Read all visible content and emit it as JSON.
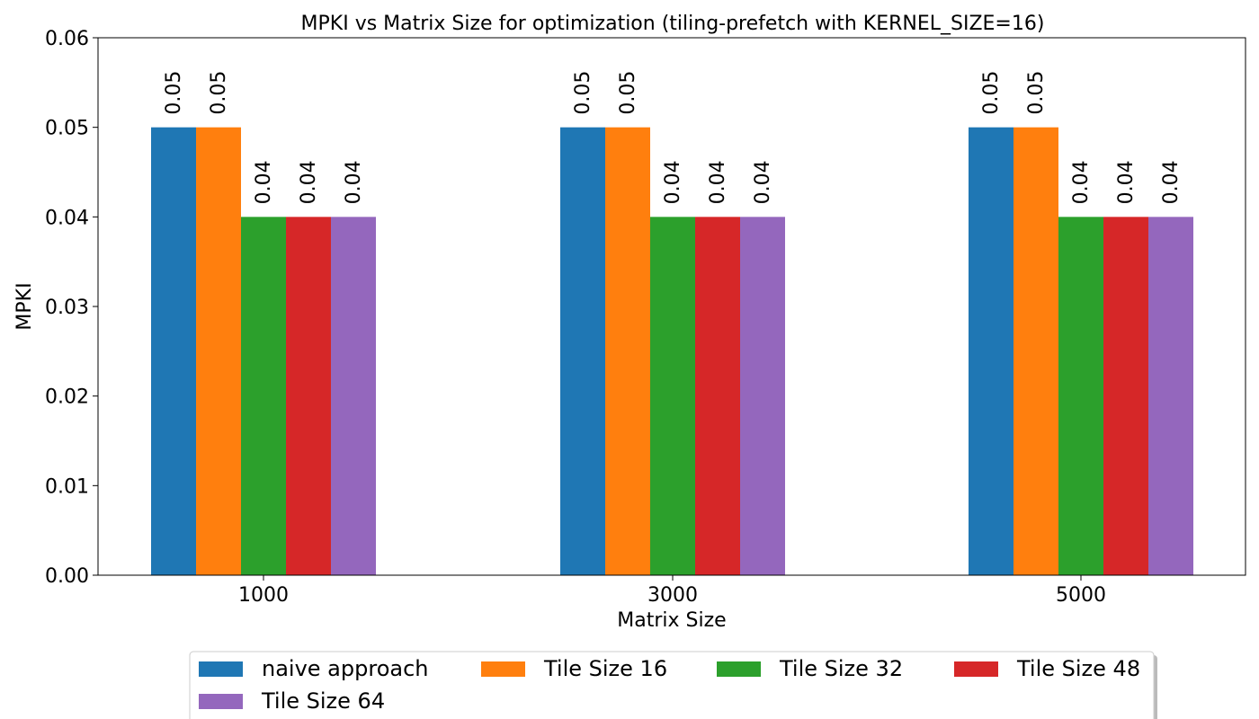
{
  "chart_data": {
    "type": "bar",
    "title": "MPKI vs Matrix Size for optimization (tiling-prefetch with KERNEL_SIZE=16)",
    "xlabel": "Matrix Size",
    "ylabel": "MPKI",
    "categories": [
      "1000",
      "3000",
      "5000"
    ],
    "ylim": [
      0,
      0.06
    ],
    "yticks": [
      "0.00",
      "0.01",
      "0.02",
      "0.03",
      "0.04",
      "0.05",
      "0.06"
    ],
    "grid": false,
    "legend_position": "bottom-center",
    "series": [
      {
        "name": "naive approach",
        "color": "#1f77b4",
        "values": [
          0.05,
          0.05,
          0.05
        ],
        "labels": [
          "0.05",
          "0.05",
          "0.05"
        ]
      },
      {
        "name": "Tile Size 16",
        "color": "#ff7f0e",
        "values": [
          0.05,
          0.05,
          0.05
        ],
        "labels": [
          "0.05",
          "0.05",
          "0.05"
        ]
      },
      {
        "name": "Tile Size 32",
        "color": "#2ca02c",
        "values": [
          0.04,
          0.04,
          0.04
        ],
        "labels": [
          "0.04",
          "0.04",
          "0.04"
        ]
      },
      {
        "name": "Tile Size 48",
        "color": "#d62728",
        "values": [
          0.04,
          0.04,
          0.04
        ],
        "labels": [
          "0.04",
          "0.04",
          "0.04"
        ]
      },
      {
        "name": "Tile Size 64",
        "color": "#9467bd",
        "values": [
          0.04,
          0.04,
          0.04
        ],
        "labels": [
          "0.04",
          "0.04",
          "0.04"
        ]
      }
    ]
  }
}
